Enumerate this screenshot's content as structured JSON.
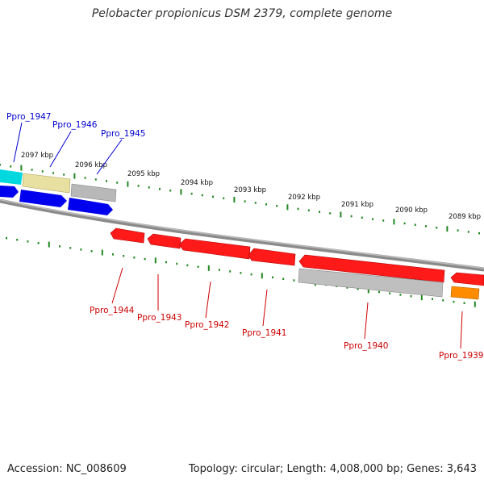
{
  "title": "Pelobacter propionicus DSM 2379, complete genome",
  "footer": {
    "accession": "Accession: NC_008609",
    "topology": "Topology: circular; Length: 4,008,000 bp; Genes: 3,643"
  },
  "kbp_labels": [
    "2097 kbp",
    "2096 kbp",
    "2095 kbp",
    "2094 kbp",
    "2093 kbp",
    "2092 kbp",
    "2091 kbp",
    "2090 kbp",
    "2089 kbp"
  ],
  "genes_forward": [
    {
      "label": "Ppro_1947",
      "color": "#00d8e0"
    },
    {
      "label": "Ppro_1946",
      "color": "#e8e0a0"
    },
    {
      "label": "Ppro_1945",
      "color": "#b8b8b8"
    }
  ],
  "genes_reverse": [
    {
      "label": "Ppro_1944",
      "color": "#ff0000"
    },
    {
      "label": "Ppro_1943",
      "color": "#ff0000"
    },
    {
      "label": "Ppro_1942",
      "color": "#ff0000"
    },
    {
      "label": "Ppro_1941",
      "color": "#ff0000"
    },
    {
      "label": "Ppro_1940",
      "color": "#ff0000"
    },
    {
      "label": "Ppro_1939",
      "color": "#ff8c00"
    }
  ],
  "colors": {
    "forward_label": "#0000cc",
    "reverse_label": "#cc0000",
    "forward_blue": "#0000ff",
    "tick_green": "#228822",
    "backbone": "#888888"
  }
}
